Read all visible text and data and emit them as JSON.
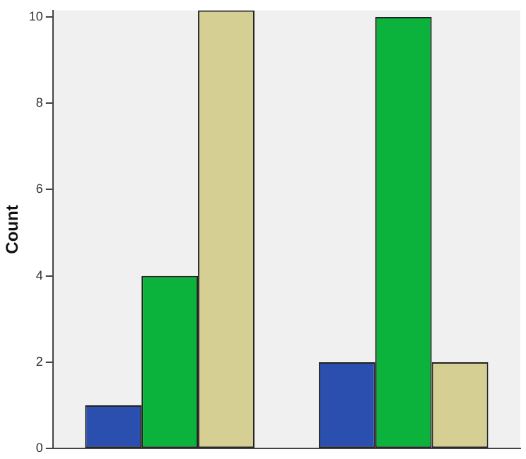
{
  "chart_data": {
    "type": "bar",
    "ylabel": "Count",
    "categories": [
      null,
      null
    ],
    "series": [
      {
        "color": "#2a4fae",
        "values": [
          1,
          2
        ]
      },
      {
        "color": "#0bb33c",
        "values": [
          4,
          10
        ]
      },
      {
        "color": "#d6cf94",
        "values": [
          10.15,
          2
        ]
      }
    ],
    "ylim": [
      0,
      10.15
    ],
    "yticks": [
      0,
      2,
      4,
      6,
      8,
      10
    ],
    "grid": false,
    "legend": false
  }
}
